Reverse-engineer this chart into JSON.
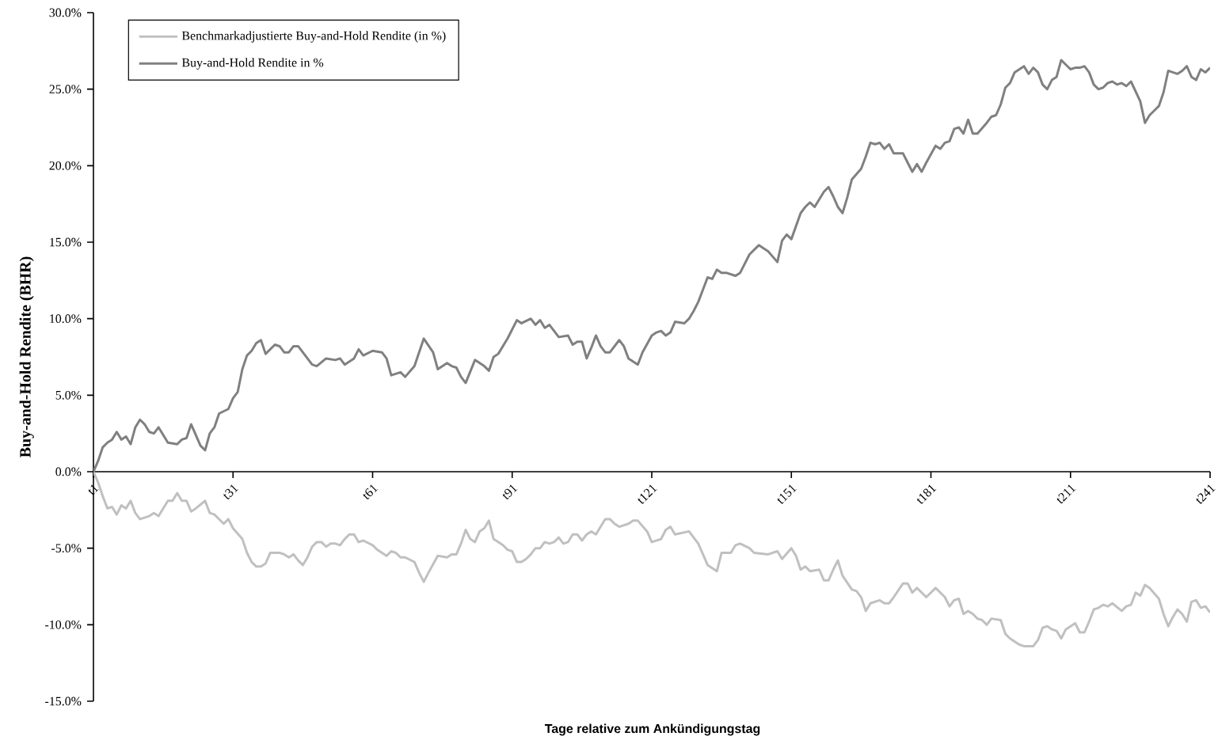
{
  "chart_data": {
    "type": "line",
    "xlabel": "Tage relative zum Ankündigungstag",
    "ylabel": "Buy-and-Hold Rendite (BHR)",
    "categories": [
      "t1",
      null,
      null,
      null,
      null,
      null,
      null,
      null,
      null,
      null,
      null,
      null,
      null,
      null,
      null,
      null,
      null,
      null,
      null,
      null,
      null,
      null,
      null,
      null,
      null,
      null,
      null,
      null,
      null,
      null,
      "t31",
      null,
      null,
      null,
      null,
      null,
      null,
      null,
      null,
      null,
      null,
      null,
      null,
      null,
      null,
      null,
      null,
      null,
      null,
      null,
      null,
      null,
      null,
      null,
      null,
      null,
      null,
      null,
      null,
      null,
      "t61",
      null,
      null,
      null,
      null,
      null,
      null,
      null,
      null,
      null,
      null,
      null,
      null,
      null,
      null,
      null,
      null,
      null,
      null,
      null,
      null,
      null,
      null,
      null,
      null,
      null,
      null,
      null,
      null,
      null,
      "t91",
      null,
      null,
      null,
      null,
      null,
      null,
      null,
      null,
      null,
      null,
      null,
      null,
      null,
      null,
      null,
      null,
      null,
      null,
      null,
      null,
      null,
      null,
      null,
      null,
      null,
      null,
      null,
      null,
      null,
      "t121",
      null,
      null,
      null,
      null,
      null,
      null,
      null,
      null,
      null,
      null,
      null,
      null,
      null,
      null,
      null,
      null,
      null,
      null,
      null,
      null,
      null,
      null,
      null,
      null,
      null,
      null,
      null,
      null,
      null,
      "t151",
      null,
      null,
      null,
      null,
      null,
      null,
      null,
      null,
      null,
      null,
      null,
      null,
      null,
      null,
      null,
      null,
      null,
      null,
      null,
      null,
      null,
      null,
      null,
      null,
      null,
      null,
      null,
      null,
      null,
      "t181",
      null,
      null,
      null,
      null,
      null,
      null,
      null,
      null,
      null,
      null,
      null,
      null,
      null,
      null,
      null,
      null,
      null,
      null,
      null,
      null,
      null,
      null,
      null,
      null,
      null,
      null,
      null,
      null,
      null,
      "t211",
      null,
      null,
      null,
      null,
      null,
      null,
      null,
      null,
      null,
      null,
      null,
      null,
      null,
      null,
      null,
      null,
      null,
      null,
      null,
      null,
      null,
      null,
      null,
      null,
      null,
      null,
      null,
      null,
      null,
      "t241"
    ],
    "ylim": [
      -15,
      30
    ],
    "yticks": [
      {
        "value": -15,
        "label": "-15.0%"
      },
      {
        "value": -10,
        "label": "-10.0%"
      },
      {
        "value": -5,
        "label": "-5.0%"
      },
      {
        "value": 0,
        "label": "0.0%"
      },
      {
        "value": 5,
        "label": "5.0%"
      },
      {
        "value": 10,
        "label": "10.0%"
      },
      {
        "value": 15,
        "label": "15.0%"
      },
      {
        "value": 20,
        "label": "20.0%"
      },
      {
        "value": 25,
        "label": "25.0%"
      },
      {
        "value": 30,
        "label": "30.0%"
      }
    ],
    "legend": "top left",
    "series": [
      {
        "name": "Benchmarkadjustierte Buy-and-Hold Rendite (in %)",
        "color": "#c0c0c0",
        "values": [
          0,
          -0.7,
          -1.6,
          -2.4,
          -2.3,
          -2.8,
          -2.2,
          -2.4,
          -1.9,
          -2.7,
          -3.1,
          null,
          -2.9,
          -2.7,
          -2.9,
          null,
          -1.9,
          -1.9,
          -1.4,
          -1.9,
          -1.9,
          -2.6,
          -2.4,
          null,
          -1.9,
          -2.7,
          -2.8,
          null,
          -3.4,
          -3.1,
          -3.7,
          null,
          -4.4,
          -5.3,
          -5.9,
          -6.2,
          -6.2,
          -6.0,
          -5.3,
          null,
          -5.3,
          -5.4,
          -5.6,
          -5.4,
          -5.8,
          -6.1,
          -5.6,
          -4.9,
          -4.6,
          -4.6,
          -4.9,
          -4.7,
          -4.7,
          -4.8,
          -4.4,
          -4.1,
          -4.1,
          -4.6,
          -4.5,
          null,
          -4.8,
          -5.1,
          -5.3,
          -5.5,
          -5.2,
          -5.3,
          -5.6,
          -5.6,
          null,
          -5.9,
          -6.6,
          -7.2,
          -6.6,
          null,
          -5.5,
          null,
          -5.6,
          -5.4,
          -5.4,
          -4.7,
          -3.8,
          -4.4,
          -4.6,
          -3.9,
          -3.7,
          -3.2,
          -4.4,
          -4.6,
          -4.8,
          -5.1,
          -5.2,
          -5.9,
          -5.9,
          -5.7,
          -5.4,
          -5.0,
          -5.0,
          -4.6,
          -4.7,
          -4.6,
          -4.3,
          -4.7,
          -4.6,
          -4.1,
          -4.1,
          -4.5,
          -4.1,
          -3.9,
          -4.1,
          -3.6,
          -3.1,
          -3.1,
          -3.4,
          -3.6,
          null,
          -3.4,
          -3.2,
          -3.2,
          null,
          -3.9,
          -4.6,
          null,
          -4.4,
          -3.8,
          -3.6,
          -4.1,
          null,
          null,
          -3.9,
          null,
          -4.7,
          null,
          -6.1,
          null,
          -6.5,
          -5.3,
          null,
          -5.3,
          -4.8,
          -4.7,
          null,
          -5.0,
          -5.3,
          null,
          null,
          -5.4,
          null,
          -5.2,
          -5.7,
          null,
          -5.0,
          -5.5,
          -6.4,
          -6.2,
          -6.5,
          null,
          -6.4,
          -7.1,
          -7.1,
          -6.4,
          -5.8,
          -6.8,
          null,
          -7.7,
          -7.8,
          -8.2,
          -9.1,
          -8.6,
          null,
          -8.4,
          -8.6,
          -8.6,
          -8.2,
          null,
          -7.3,
          -7.3,
          -7.9,
          -7.6,
          null,
          -8.2,
          null,
          -7.6,
          null,
          -8.2,
          -8.8,
          -8.4,
          -8.3,
          -9.3,
          -9.1,
          -9.3,
          -9.6,
          -9.7,
          -10.0,
          -9.6,
          null,
          -9.7,
          -10.6,
          -10.9,
          null,
          -11.3,
          -11.4,
          null,
          -11.4,
          -11.0,
          -10.2,
          -10.1,
          -10.3,
          -10.4,
          -10.9,
          -10.3,
          null,
          -9.9,
          -10.5,
          -10.5,
          -9.8,
          -9.0,
          -8.9,
          -8.7,
          -8.8,
          -8.6,
          null,
          -9.1,
          -8.8,
          -8.7,
          -7.9,
          -8.1,
          -7.4,
          -7.6,
          null,
          -8.3,
          -9.3,
          -10.1,
          -9.5,
          -9.0,
          -9.3,
          -9.8,
          -8.5,
          -8.4,
          -8.9,
          -8.8,
          -9.2
        ]
      },
      {
        "name": "Buy-and-Hold Rendite in %",
        "color": "#808080",
        "values": [
          0,
          0.7,
          1.6,
          1.9,
          2.1,
          2.6,
          2.1,
          2.3,
          1.8,
          2.9,
          3.4,
          3.1,
          2.6,
          2.5,
          2.9,
          null,
          1.9,
          null,
          1.8,
          2.1,
          2.2,
          3.1,
          null,
          1.7,
          1.4,
          2.5,
          2.9,
          3.8,
          null,
          4.1,
          4.8,
          5.2,
          6.7,
          7.6,
          7.9,
          8.4,
          8.6,
          7.7,
          null,
          8.3,
          8.2,
          7.8,
          7.8,
          8.2,
          8.2,
          7.8,
          null,
          7.0,
          6.9,
          null,
          7.4,
          null,
          7.3,
          7.4,
          7.0,
          null,
          7.4,
          8.0,
          7.6,
          null,
          7.9,
          null,
          7.8,
          7.4,
          6.3,
          null,
          6.5,
          6.2,
          null,
          6.9,
          7.8,
          8.7,
          null,
          7.8,
          6.7,
          null,
          7.1,
          6.9,
          6.8,
          6.2,
          5.8,
          null,
          7.3,
          null,
          6.9,
          6.6,
          7.5,
          7.7,
          null,
          8.7,
          9.3,
          9.9,
          9.7,
          null,
          10.0,
          9.6,
          9.9,
          9.4,
          9.6,
          9.2,
          8.8,
          null,
          8.9,
          8.3,
          8.5,
          8.5,
          7.4,
          8.1,
          8.9,
          8.2,
          7.8,
          7.8,
          null,
          8.6,
          8.2,
          7.4,
          null,
          7.0,
          7.8,
          null,
          8.9,
          9.1,
          9.2,
          8.9,
          9.1,
          9.8,
          null,
          9.7,
          10.0,
          10.5,
          11.1,
          null,
          12.7,
          12.6,
          13.2,
          13.0,
          13.0,
          null,
          12.8,
          13.0,
          null,
          14.2,
          14.5,
          14.8,
          14.6,
          14.4,
          null,
          13.7,
          15.1,
          15.5,
          15.2,
          null,
          16.9,
          17.3,
          17.6,
          17.3,
          null,
          18.3,
          18.6,
          18.0,
          17.3,
          16.9,
          17.9,
          19.1,
          null,
          19.8,
          20.6,
          21.5,
          21.4,
          21.5,
          21.1,
          21.4,
          20.8,
          null,
          20.8,
          20.2,
          19.6,
          20.1,
          19.6,
          20.2,
          null,
          21.3,
          21.1,
          21.5,
          21.6,
          22.4,
          22.5,
          22.1,
          23.0,
          22.1,
          22.1,
          null,
          22.8,
          23.2,
          23.3,
          24.0,
          25.1,
          25.4,
          26.1,
          null,
          26.5,
          26.0,
          26.4,
          26.1,
          25.3,
          25.0,
          25.6,
          25.8,
          26.9,
          26.6,
          26.3,
          26.4,
          26.4,
          26.5,
          26.1,
          25.3,
          25.0,
          25.1,
          25.4,
          25.5,
          25.3,
          25.4,
          25.2,
          25.5,
          null,
          24.2,
          22.8,
          23.3,
          23.6,
          23.9,
          24.8,
          26.2,
          26.1,
          26.0,
          26.2,
          26.5,
          25.8,
          25.6,
          26.3,
          26.1,
          26.4
        ]
      }
    ]
  }
}
